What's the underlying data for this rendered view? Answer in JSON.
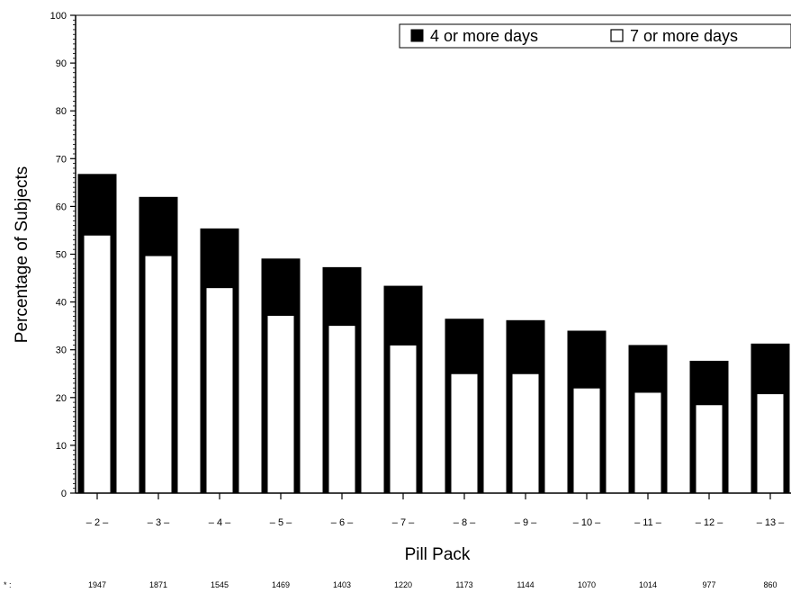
{
  "chart_data": {
    "type": "bar",
    "title": "",
    "xlabel": "Pill Pack",
    "ylabel": "Percentage of Subjects",
    "ylim": [
      0,
      100
    ],
    "yticks": [
      0,
      10,
      20,
      30,
      40,
      50,
      60,
      70,
      80,
      90,
      100
    ],
    "grid": false,
    "legend_position": "top-right",
    "categories": [
      "– 2 –",
      "– 3 –",
      "– 4 –",
      "– 5 –",
      "– 6 –",
      "– 7 –",
      "– 8 –",
      "– 9 –",
      "– 10 –",
      "– 11 –",
      "– 12 –",
      "– 13 –"
    ],
    "series": [
      {
        "name": "4 or more days",
        "color": "#000000",
        "values": [
          66.7,
          61.9,
          55.3,
          49.0,
          47.2,
          43.3,
          36.4,
          36.1,
          33.9,
          30.9,
          27.6,
          31.2
        ]
      },
      {
        "name": "7 or more days",
        "color": "#ffffff",
        "values": [
          54.0,
          49.7,
          43.0,
          37.2,
          35.1,
          31.0,
          25.0,
          25.0,
          22.0,
          21.1,
          18.5,
          20.8
        ]
      }
    ],
    "n_row": {
      "label": "* :",
      "values": [
        "1947",
        "1871",
        "1545",
        "1469",
        "1403",
        "1220",
        "1173",
        "1144",
        "1070",
        "1014",
        "977",
        "860"
      ]
    }
  }
}
